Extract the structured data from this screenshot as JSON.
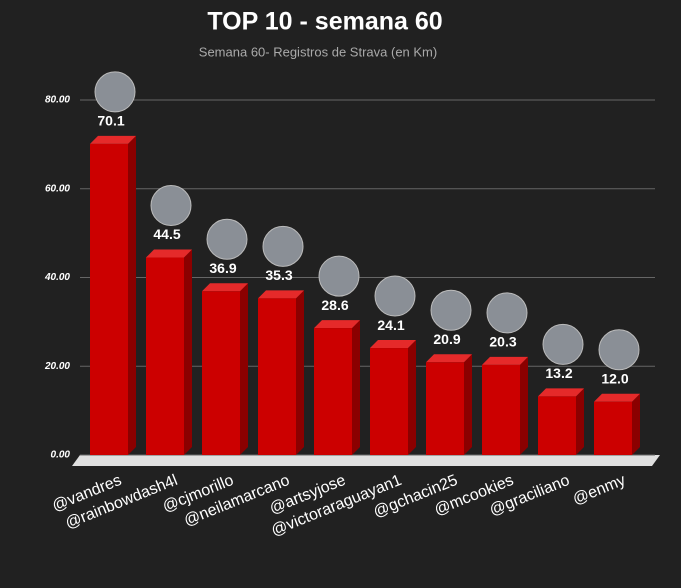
{
  "chart_data": {
    "type": "bar3d",
    "title": "TOP 10 - semana 60",
    "subtitle": "Semana 60- Registros de Strava (en Km)",
    "categories": [
      "@vandres",
      "@rainbowdash4l",
      "@cjmorillo",
      "@neilamarcano",
      "@artsyjose",
      "@victoraraguayan1",
      "@gchacin25",
      "@mcookies",
      "@graciliano",
      "@enmy"
    ],
    "values": [
      70.1,
      44.5,
      36.9,
      35.3,
      28.6,
      24.1,
      20.9,
      20.3,
      13.2,
      12.0
    ],
    "value_labels": [
      "70.1",
      "44.5",
      "36.9",
      "35.3",
      "28.6",
      "24.1",
      "20.9",
      "20.3",
      "13.2",
      "12.0"
    ],
    "color": "#cc0000",
    "ylim": [
      0,
      80
    ],
    "yticks": [
      {
        "value": 0,
        "label": "0.00"
      },
      {
        "value": 20,
        "label": "20.00"
      },
      {
        "value": 40,
        "label": "40.00"
      },
      {
        "value": 60,
        "label": "60.00"
      },
      {
        "value": 80,
        "label": "80.00"
      }
    ],
    "grid": true
  }
}
